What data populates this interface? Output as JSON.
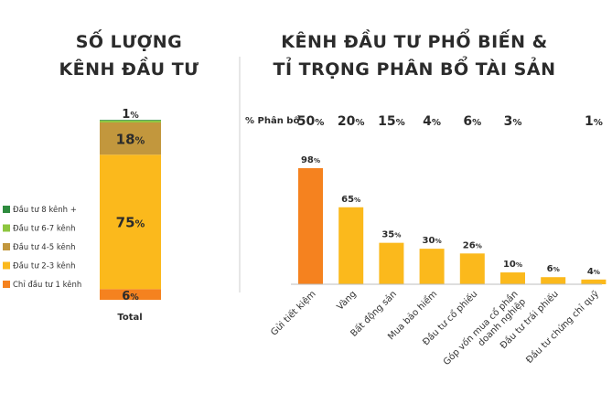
{
  "left_chart": {
    "title_line1": "SỐ LƯỢNG",
    "title_line2": "KÊNH ĐẦU TƯ",
    "xlabel": "Total"
  },
  "right_chart": {
    "title_line1": "KÊNH ĐẦU TƯ PHỔ BIẾN &",
    "title_line2": "TỈ TRỌNG PHÂN BỔ TÀI SẢN",
    "allocation_label": "% Phân bổ"
  },
  "colors": {
    "orange": "#F5821F",
    "yellow": "#FBB91C",
    "tan": "#C2973D",
    "light_green": "#8DC63F",
    "dark_green": "#2E8B3E"
  },
  "chart_data": [
    {
      "type": "bar",
      "stacked": true,
      "categories": [
        "Total"
      ],
      "series": [
        {
          "name": "Chỉ đầu tư 1 kênh",
          "values": [
            6
          ],
          "label": "6%",
          "color": "#F5821F"
        },
        {
          "name": "Đầu tư 2-3 kênh",
          "values": [
            75
          ],
          "label": "75%",
          "color": "#FBB91C"
        },
        {
          "name": "Đầu tư 4-5 kênh",
          "values": [
            18
          ],
          "label": "18%",
          "color": "#C2973D"
        },
        {
          "name": "Đầu tư 6-7 kênh",
          "values": [
            1
          ],
          "label": "1%",
          "color": "#8DC63F"
        },
        {
          "name": "Đầu tư 8 kênh +",
          "values": [
            0.4
          ],
          "label": "",
          "color": "#2E8B3E"
        }
      ],
      "legend_order": [
        "Đầu tư 8 kênh +",
        "Đầu tư 6-7 kênh",
        "Đầu tư 4-5 kênh",
        "Đầu tư 2-3 kênh",
        "Chỉ đầu tư 1 kênh"
      ],
      "legend_placement": "left"
    },
    {
      "type": "bar",
      "categories": [
        "Gửi tiết kiệm",
        "Vàng",
        "Bất động sản",
        "Mua bảo hiểm",
        "Đầu tư cổ phiếu",
        "Góp vốn mua cổ phần doanh nghiệp",
        "Đầu tư trái phiếu",
        "Đầu tư chứng chỉ quỹ"
      ],
      "category_lines": [
        [
          "Gửi tiết kiệm"
        ],
        [
          "Vàng"
        ],
        [
          "Bất động sản"
        ],
        [
          "Mua bảo hiểm"
        ],
        [
          "Đầu tư cổ phiếu"
        ],
        [
          "Góp vốn mua cổ phần",
          "doanh nghiệp"
        ],
        [
          "Đầu tư trái phiếu"
        ],
        [
          "Đầu tư chứng chỉ quỹ"
        ]
      ],
      "values": [
        98,
        65,
        35,
        30,
        26,
        10,
        6,
        4
      ],
      "value_labels": [
        "98%",
        "65%",
        "35%",
        "30%",
        "26%",
        "10%",
        "6%",
        "4%"
      ],
      "allocation": [
        {
          "value": 50,
          "label": "50%"
        },
        {
          "value": 20,
          "label": "20%"
        },
        {
          "value": 15,
          "label": "15%"
        },
        {
          "value": 4,
          "label": "4%"
        },
        {
          "value": 6,
          "label": "6%"
        },
        {
          "value": 3,
          "label": "3%"
        },
        {
          "value": null,
          "label": ""
        },
        {
          "value": 1,
          "label": "1%"
        }
      ],
      "highlight_index": 0,
      "ylim": [
        0,
        100
      ]
    }
  ]
}
